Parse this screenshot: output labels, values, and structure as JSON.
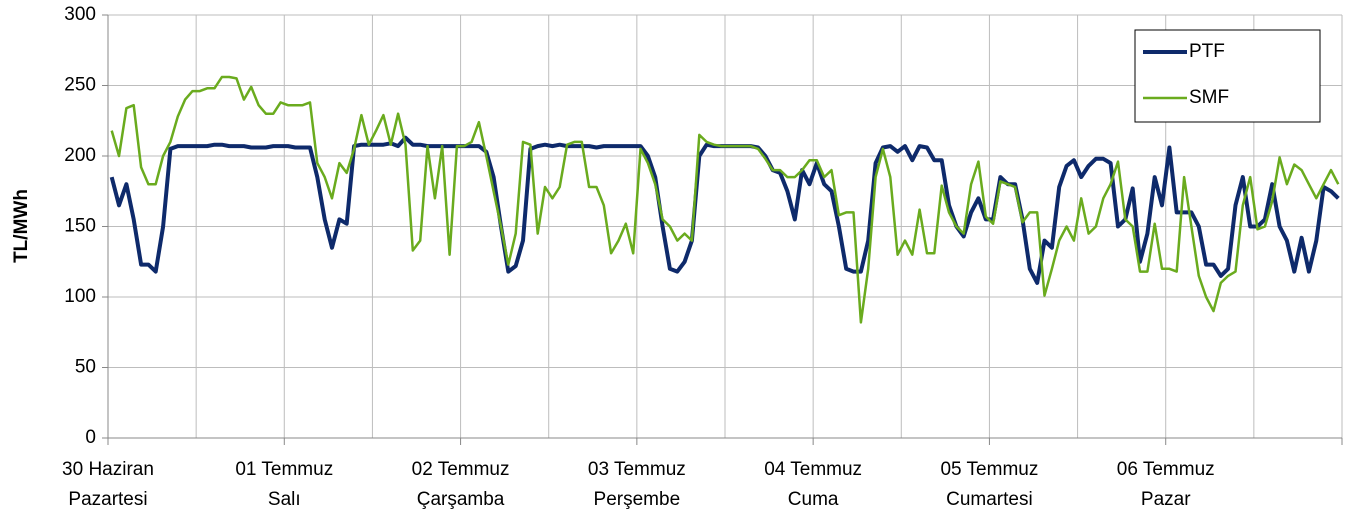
{
  "chart_data": {
    "type": "line",
    "ylabel": "TL/MWh",
    "xlim": [
      0,
      168
    ],
    "xticks": [
      {
        "value": 0,
        "label": [
          "30 Haziran",
          "Pazartesi"
        ]
      },
      {
        "value": 24,
        "label": [
          "01 Temmuz",
          "Salı"
        ]
      },
      {
        "value": 48,
        "label": [
          "02 Temmuz",
          "Çarşamba"
        ]
      },
      {
        "value": 72,
        "label": [
          "03 Temmuz",
          "Perşembe"
        ]
      },
      {
        "value": 96,
        "label": [
          "04 Temmuz",
          "Cuma"
        ]
      },
      {
        "value": 120,
        "label": [
          "05 Temmuz",
          "Cumartesi"
        ]
      },
      {
        "value": 144,
        "label": [
          "06 Temmuz",
          "Pazar"
        ]
      },
      {
        "value": 168,
        "label": []
      }
    ],
    "xminor": [
      12,
      36,
      60,
      84,
      108,
      132,
      156
    ],
    "ylim": [
      0,
      300
    ],
    "yticks": [
      0,
      50,
      100,
      150,
      200,
      250,
      300
    ],
    "grid": true,
    "legend": "upper right",
    "series": [
      {
        "name": "PTF",
        "color": "#0e2a6b",
        "width": 4,
        "values": [
          185,
          165,
          180,
          155,
          123,
          123,
          118,
          150,
          205,
          207,
          207,
          207,
          207,
          207,
          208,
          208,
          207,
          207,
          207,
          206,
          206,
          206,
          207,
          207,
          207,
          206,
          206,
          206,
          185,
          155,
          135,
          155,
          152,
          207,
          208,
          208,
          208,
          208,
          209,
          207,
          213,
          208,
          208,
          207,
          207,
          207,
          207,
          207,
          207,
          207,
          207,
          203,
          185,
          150,
          118,
          122,
          140,
          205,
          207,
          208,
          207,
          208,
          207,
          207,
          207,
          207,
          206,
          207,
          207,
          207,
          207,
          207,
          207,
          200,
          185,
          150,
          120,
          118,
          125,
          140,
          200,
          208,
          207,
          207,
          207,
          207,
          207,
          207,
          206,
          200,
          190,
          188,
          175,
          155,
          190,
          180,
          195,
          180,
          175,
          150,
          120,
          118,
          118,
          140,
          195,
          206,
          207,
          203,
          207,
          197,
          207,
          206,
          197,
          197,
          165,
          150,
          143,
          160,
          170,
          155,
          155,
          185,
          180,
          180,
          155,
          120,
          110,
          140,
          135,
          178,
          193,
          197,
          185,
          193,
          198,
          198,
          195,
          150,
          155,
          177,
          125,
          145,
          185,
          165,
          206,
          160,
          160,
          160,
          150,
          123,
          123,
          115,
          120,
          165,
          185,
          150,
          150,
          155,
          180,
          150,
          140,
          118,
          142,
          118,
          140,
          178,
          175,
          170
        ]
      },
      {
        "name": "SMF",
        "color": "#6aab1e",
        "width": 2.5,
        "values": [
          218,
          200,
          234,
          236,
          192,
          180,
          180,
          200,
          210,
          228,
          240,
          246,
          246,
          248,
          248,
          256,
          256,
          255,
          240,
          249,
          236,
          230,
          230,
          238,
          236,
          236,
          236,
          238,
          195,
          185,
          170,
          195,
          188,
          205,
          229,
          208,
          218,
          229,
          208,
          230,
          208,
          133,
          140,
          207,
          170,
          207,
          130,
          207,
          207,
          210,
          224,
          200,
          175,
          150,
          123,
          145,
          210,
          208,
          145,
          178,
          170,
          178,
          208,
          210,
          210,
          178,
          178,
          165,
          131,
          140,
          152,
          131,
          205,
          195,
          180,
          155,
          150,
          140,
          145,
          140,
          215,
          210,
          208,
          207,
          207,
          207,
          207,
          207,
          205,
          198,
          190,
          190,
          185,
          185,
          190,
          197,
          197,
          185,
          190,
          158,
          160,
          160,
          82,
          120,
          185,
          205,
          185,
          130,
          140,
          130,
          162,
          131,
          131,
          179,
          160,
          150,
          145,
          180,
          196,
          157,
          152,
          182,
          180,
          178,
          153,
          160,
          160,
          101,
          120,
          140,
          150,
          140,
          170,
          145,
          150,
          170,
          180,
          196,
          155,
          150,
          118,
          118,
          152,
          120,
          120,
          118,
          185,
          150,
          115,
          100,
          90,
          110,
          115,
          118,
          165,
          185,
          148,
          150,
          168,
          199,
          180,
          194,
          190,
          180,
          170,
          180,
          190,
          180
        ]
      }
    ]
  }
}
